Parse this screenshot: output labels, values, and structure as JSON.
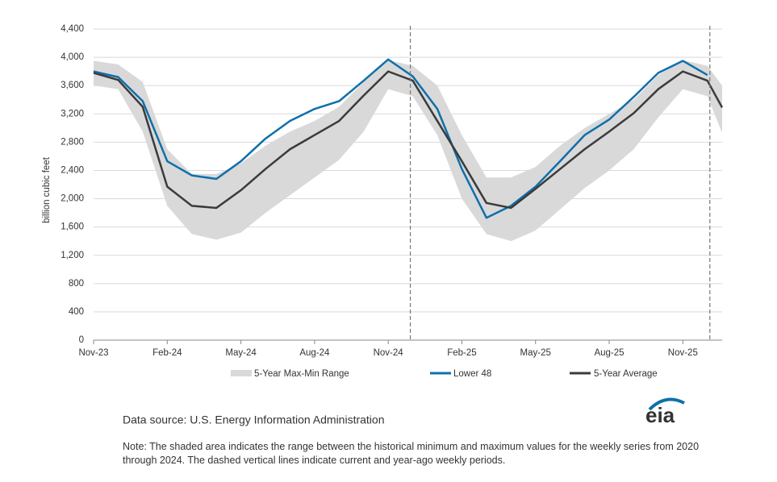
{
  "chart_data": {
    "type": "line",
    "y_label": "billion cubic feet",
    "x": [
      0,
      1,
      2,
      3,
      4,
      5,
      6,
      7,
      8,
      9,
      10,
      11,
      12,
      13,
      14,
      15,
      16,
      17,
      18,
      19,
      20,
      21,
      22,
      23,
      24,
      25,
      25.6
    ],
    "xlim": [
      0,
      25.6
    ],
    "xticks": [
      {
        "value": 0,
        "label": "Nov-23"
      },
      {
        "value": 3,
        "label": "Feb-24"
      },
      {
        "value": 6,
        "label": "May-24"
      },
      {
        "value": 9,
        "label": "Aug-24"
      },
      {
        "value": 12,
        "label": "Nov-24"
      },
      {
        "value": 15,
        "label": "Feb-25"
      },
      {
        "value": 18,
        "label": "May-25"
      },
      {
        "value": 21,
        "label": "Aug-25"
      },
      {
        "value": 24,
        "label": "Nov-25"
      }
    ],
    "ylim": [
      0,
      4400
    ],
    "yticks": [
      0,
      400,
      800,
      {
        "value": 1200,
        "label": "1,200"
      },
      {
        "value": 1600,
        "label": "1,600"
      },
      {
        "value": 2000,
        "label": "2,000"
      },
      {
        "value": 2400,
        "label": "2,400"
      },
      {
        "value": 2800,
        "label": "2,800"
      },
      {
        "value": 3200,
        "label": "3,200"
      },
      {
        "value": 3600,
        "label": "3,600"
      },
      {
        "value": 4000,
        "label": "4,000"
      },
      {
        "value": 4400,
        "label": "4,400"
      }
    ],
    "grid": true,
    "range": {
      "name": "5-Year Max-Min Range",
      "color": "#d9d9d9",
      "low": [
        3600,
        3550,
        2950,
        1900,
        1500,
        1420,
        1520,
        1800,
        2050,
        2300,
        2550,
        2950,
        3550,
        3450,
        2900,
        2000,
        1500,
        1400,
        1550,
        1850,
        2150,
        2400,
        2700,
        3150,
        3550,
        3450,
        2930
      ],
      "high": [
        3950,
        3900,
        3650,
        2700,
        2350,
        2350,
        2500,
        2750,
        2950,
        3100,
        3300,
        3650,
        3960,
        3880,
        3600,
        2900,
        2300,
        2300,
        2450,
        2750,
        3000,
        3200,
        3400,
        3750,
        3960,
        3880,
        3600
      ]
    },
    "series": [
      {
        "name": "Lower 48",
        "color": "#0f6fac",
        "values": [
          3800,
          3720,
          3380,
          2530,
          2330,
          2280,
          2530,
          2850,
          3100,
          3270,
          3380,
          3670,
          3970,
          3730,
          3270,
          2420,
          1730,
          1900,
          2170,
          2530,
          2900,
          3120,
          3440,
          3780,
          3950,
          3750,
          null
        ]
      },
      {
        "name": "5-Year Average",
        "color": "#3b3b3b",
        "values": [
          3780,
          3680,
          3300,
          2170,
          1900,
          1870,
          2120,
          2420,
          2700,
          2900,
          3100,
          3460,
          3800,
          3670,
          3100,
          2530,
          1940,
          1870,
          2140,
          2420,
          2700,
          2950,
          3210,
          3550,
          3800,
          3670,
          3290
        ]
      }
    ],
    "vlines": [
      12.9,
      25.1
    ],
    "source": "Data source: U.S. Energy Information Administration",
    "note": "Note: The shaded area indicates the range between the historical minimum and maximum values for the weekly series from 2020 through 2024. The dashed vertical lines indicate current and year-ago weekly periods.",
    "logo": "eia"
  }
}
